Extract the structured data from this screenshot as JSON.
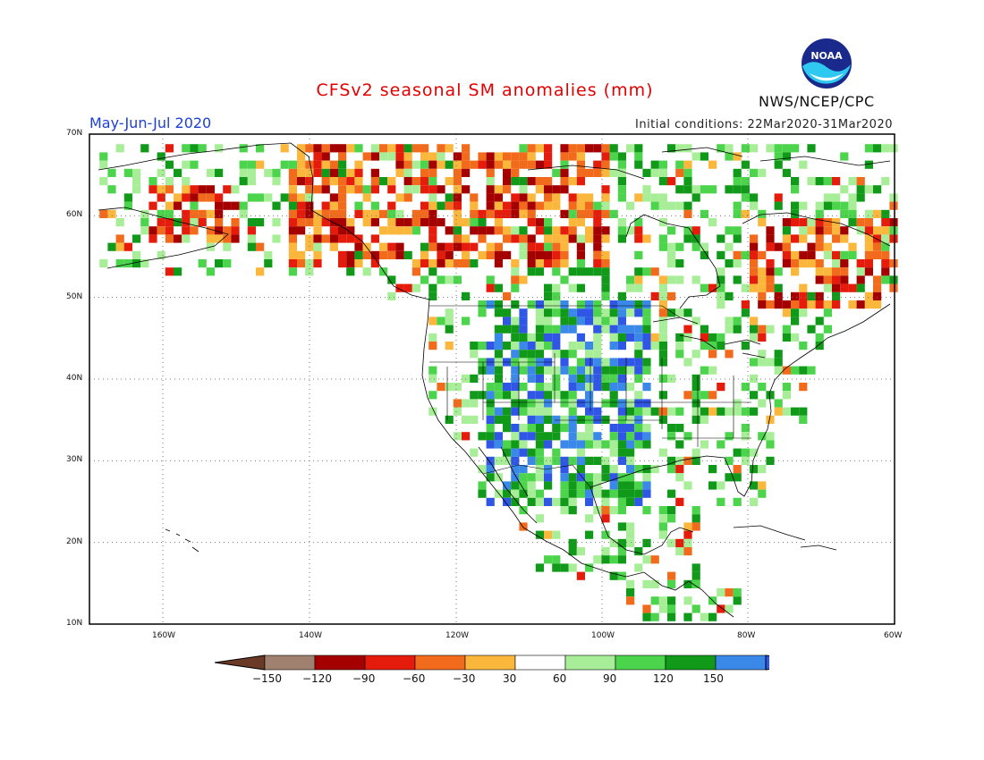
{
  "header": {
    "title": "CFSv2 seasonal SM anomalies (mm)",
    "period": "May-Jun-Jul 2020",
    "initial_conditions": "Initial conditions: 22Mar2020-31Mar2020",
    "agency": "NWS/NCEP/CPC",
    "logo_text": "NOAA"
  },
  "axes": {
    "lat_labels": [
      "70N",
      "60N",
      "50N",
      "40N",
      "30N",
      "20N",
      "10N"
    ],
    "lon_labels": [
      "160W",
      "140W",
      "120W",
      "100W",
      "80W",
      "60W"
    ]
  },
  "legend": {
    "labels": [
      "-150",
      "-120",
      "-90",
      "-60",
      "-30",
      "30",
      "60",
      "90",
      "120",
      "150"
    ],
    "colors": [
      "#6b3a27",
      "#a0806f",
      "#a50000",
      "#e51b0c",
      "#f26b1c",
      "#fbb63c",
      "#ffffff",
      "#a8ee98",
      "#4cd44c",
      "#119a1a",
      "#3a89e8",
      "#2f56e4"
    ]
  },
  "colors": {
    "title": "#e30000",
    "period": "#1d3fd6",
    "ocean": "#ffffff",
    "coast": "#000000"
  }
}
